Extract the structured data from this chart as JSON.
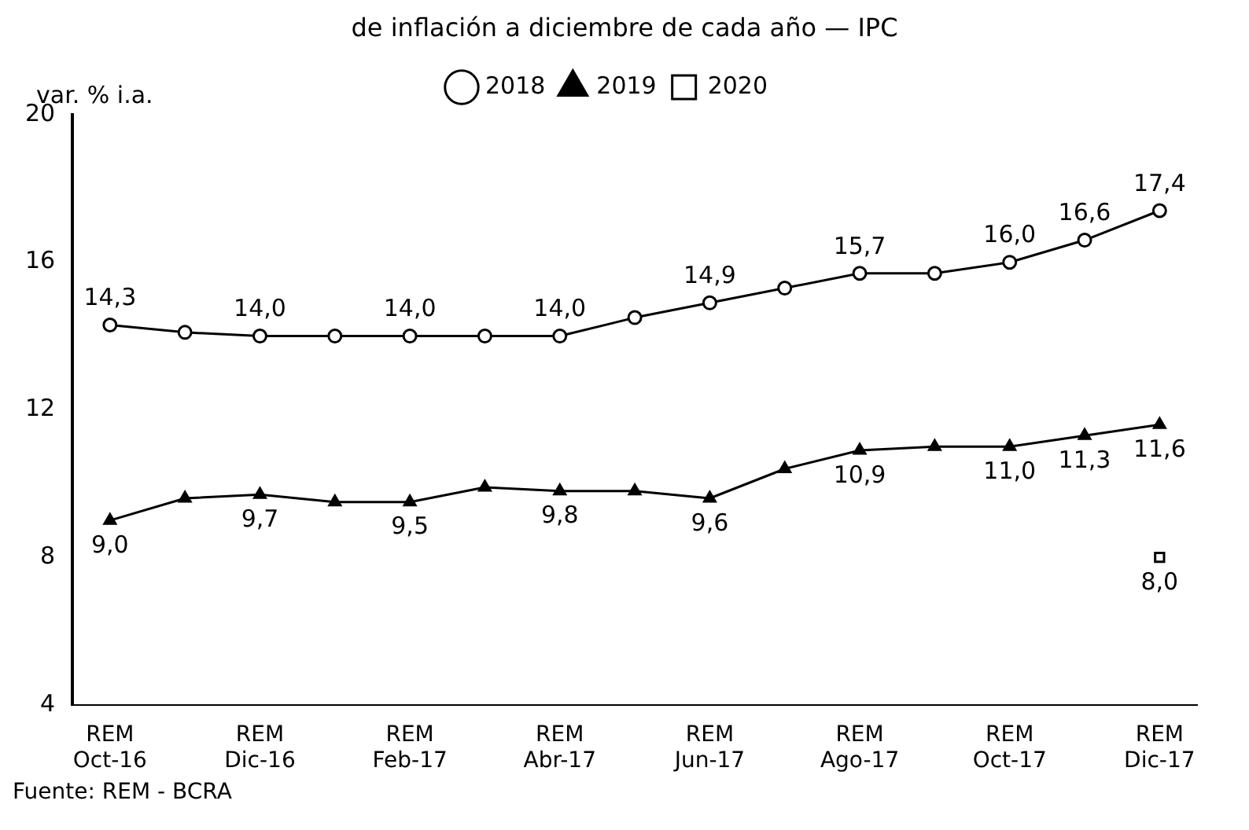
{
  "chart_data": {
    "type": "line",
    "title": "de inflación a diciembre de cada año — IPC",
    "ylabel": "var. % i.a.",
    "categories": [
      "REM Oct-16",
      null,
      "REM Dic-16",
      null,
      "REM Feb-17",
      null,
      "REM Abr-17",
      null,
      "REM Jun-17",
      null,
      "REM Ago-17",
      null,
      "REM Oct-17",
      null,
      "REM Dic-17"
    ],
    "series": [
      {
        "name": "2018",
        "color": "#000000",
        "marker": "circle",
        "values": [
          14.3,
          14.1,
          14.0,
          14.0,
          14.0,
          14.0,
          14.0,
          14.5,
          14.9,
          15.3,
          15.7,
          15.7,
          16.0,
          16.6,
          17.4
        ],
        "value_labels": [
          "14,3",
          null,
          "14,0",
          null,
          "14,0",
          null,
          "14,0",
          null,
          "14,9",
          null,
          "15,7",
          null,
          "16,0",
          "16,6",
          "17,4"
        ]
      },
      {
        "name": "2019",
        "color": "#000000",
        "marker": "triangle",
        "values": [
          9.0,
          9.6,
          9.7,
          9.5,
          9.5,
          9.9,
          9.8,
          9.8,
          9.6,
          10.4,
          10.9,
          11.0,
          11.0,
          11.3,
          11.6
        ],
        "value_labels": [
          "9,0",
          null,
          "9,7",
          null,
          "9,5",
          null,
          "9,8",
          null,
          "9,6",
          null,
          "10,9",
          null,
          "11,0",
          "11,3",
          "11,6"
        ]
      },
      {
        "name": "2020",
        "color": "#000000",
        "marker": "square",
        "values": [
          null,
          null,
          null,
          null,
          null,
          null,
          null,
          null,
          null,
          null,
          null,
          null,
          null,
          null,
          8.0
        ],
        "value_labels": [
          null,
          null,
          null,
          null,
          null,
          null,
          null,
          null,
          null,
          null,
          null,
          null,
          null,
          null,
          "8,0"
        ]
      }
    ],
    "ylim": [
      4,
      20
    ],
    "yticks": [
      4,
      8,
      12,
      16,
      20
    ],
    "grid": false,
    "legend": "top",
    "annotations": [
      "Fuente: REM - BCRA"
    ]
  }
}
